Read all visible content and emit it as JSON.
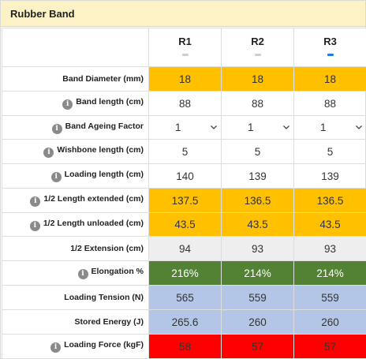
{
  "panel": {
    "title": "Rubber Band"
  },
  "columns": [
    {
      "label": "R1",
      "active": false
    },
    {
      "label": "R2",
      "active": false
    },
    {
      "label": "R3",
      "active": true
    }
  ],
  "rows": [
    {
      "label": "Band Diameter (mm)",
      "info": false,
      "values": [
        "18",
        "18",
        "18"
      ],
      "style": "yellow"
    },
    {
      "label": "Band length (cm)",
      "info": true,
      "values": [
        "88",
        "88",
        "88"
      ],
      "style": "plain"
    },
    {
      "label": "Band Ageing Factor",
      "info": true,
      "values": [
        "1",
        "1",
        "1"
      ],
      "style": "select"
    },
    {
      "label": "Wishbone length (cm)",
      "info": true,
      "values": [
        "5",
        "5",
        "5"
      ],
      "style": "plain"
    },
    {
      "label": "Loading length (cm)",
      "info": true,
      "values": [
        "140",
        "139",
        "139"
      ],
      "style": "plain"
    },
    {
      "label": "1/2 Length extended (cm)",
      "info": true,
      "values": [
        "137.5",
        "136.5",
        "136.5"
      ],
      "style": "yellow"
    },
    {
      "label": "1/2 Length unloaded (cm)",
      "info": true,
      "values": [
        "43.5",
        "43.5",
        "43.5"
      ],
      "style": "yellow"
    },
    {
      "label": "1/2 Extension (cm)",
      "info": false,
      "values": [
        "94",
        "93",
        "93"
      ],
      "style": "grey"
    },
    {
      "label": "Elongation %",
      "info": true,
      "values": [
        "216%",
        "214%",
        "214%"
      ],
      "style": "green"
    },
    {
      "label": "Loading Tension (N)",
      "info": false,
      "values": [
        "565",
        "559",
        "559"
      ],
      "style": "blue"
    },
    {
      "label": "Stored Energy (J)",
      "info": false,
      "values": [
        "265.6",
        "260",
        "260"
      ],
      "style": "blue"
    },
    {
      "label": "Loading Force (kgF)",
      "info": true,
      "values": [
        "58",
        "57",
        "57"
      ],
      "style": "red"
    }
  ],
  "colors": {
    "header": "#fdf2c6",
    "yellow": "#ffc000",
    "grey": "#eeeeee",
    "green": "#548235",
    "blue": "#b4c6e7",
    "red": "#ff0000",
    "active_tab": "#1e7fe0"
  },
  "icons": {
    "info": "info-icon",
    "dropdown": "chevron-down-icon"
  }
}
